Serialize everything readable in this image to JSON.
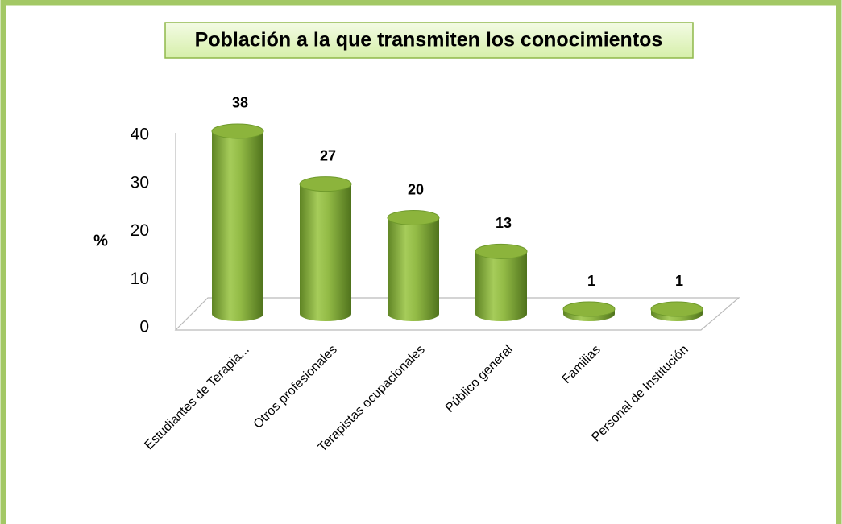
{
  "chart_data": {
    "type": "bar",
    "title": "Población a la que transmiten los conocimientos",
    "categories": [
      "Estudiantes de Terapia...",
      "Otros profesionales",
      "Terapistas ocupacionales",
      "Público general",
      "Familias",
      "Personal de Institución"
    ],
    "values": [
      38,
      27,
      20,
      13,
      1,
      1
    ],
    "color": "#8cb43c",
    "ylabel": "%",
    "ylim": [
      0,
      40
    ],
    "yticks": [
      0,
      10,
      20,
      30,
      40
    ],
    "grid": false
  }
}
